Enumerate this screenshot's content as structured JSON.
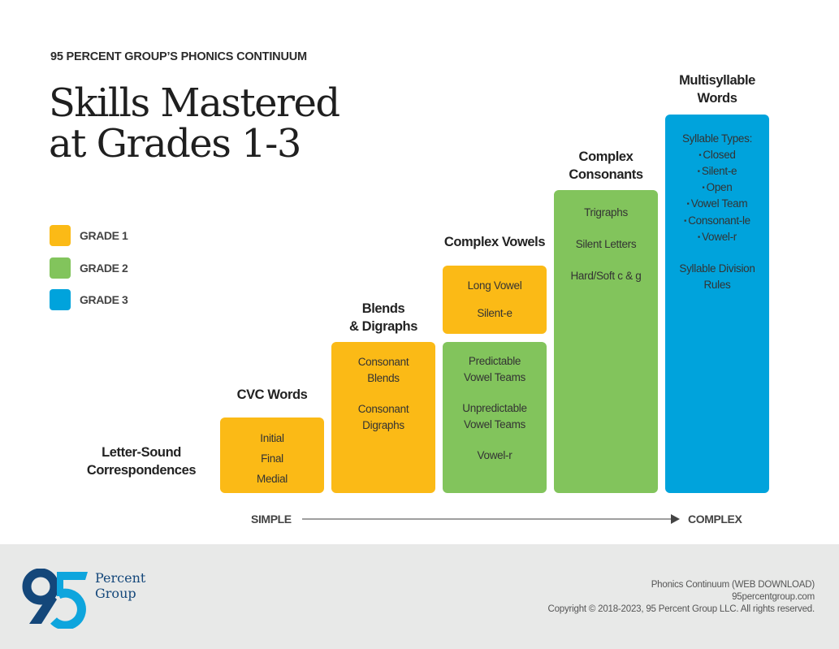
{
  "header": {
    "eyebrow": "95 PERCENT GROUP’S PHONICS CONTINUUM",
    "title_line1": "Skills Mastered",
    "title_line2": "at Grades 1-3"
  },
  "legend": [
    {
      "label": "GRADE 1",
      "color": "#fbba16"
    },
    {
      "label": "GRADE 2",
      "color": "#82c45c"
    },
    {
      "label": "GRADE 3",
      "color": "#00a3dc"
    }
  ],
  "stages": {
    "letter_sound": {
      "heading_line1": "Letter-Sound",
      "heading_line2": "Correspondences"
    },
    "cvc": {
      "heading": "CVC Words",
      "grade": 1,
      "items": [
        "Initial",
        "Final",
        "Medial"
      ]
    },
    "blends": {
      "heading_line1": "Blends",
      "heading_line2": "& Digraphs",
      "grade": 1,
      "items": [
        [
          "Consonant",
          "Blends"
        ],
        [
          "Consonant",
          "Digraphs"
        ]
      ]
    },
    "complex_vowels": {
      "heading": "Complex Vowels",
      "grade1_items": [
        "Long Vowel",
        "Silent-e"
      ],
      "grade2_items": [
        [
          "Predictable",
          "Vowel Teams"
        ],
        [
          "Unpredictable",
          "Vowel Teams"
        ],
        [
          "Vowel-r"
        ]
      ]
    },
    "complex_consonants": {
      "heading_line1": "Complex",
      "heading_line2": "Consonants",
      "grade": 2,
      "items": [
        "Trigraphs",
        "Silent Letters",
        "Hard/Soft c & g"
      ]
    },
    "multisyllable": {
      "heading_line1": "Multisyllable",
      "heading_line2": "Words",
      "grade": 3,
      "intro": "Syllable Types:",
      "bullets": [
        "Closed",
        "Silent-e",
        "Open",
        "Vowel Team",
        "Consonant-le",
        "Vowel-r"
      ],
      "outro_line1": "Syllable Division",
      "outro_line2": "Rules"
    }
  },
  "axis": {
    "start": "SIMPLE",
    "end": "COMPLEX"
  },
  "footer": {
    "logo_number": "95",
    "logo_word1": "Percent",
    "logo_word2": "Group",
    "line1": "Phonics Continuum (WEB DOWNLOAD)",
    "line2": "95percentgroup.com",
    "line3": "Copyright © 2018-2023, 95 Percent Group LLC. All rights reserved.",
    "brand_dark": "#14477a",
    "brand_light": "#0ea5dd"
  }
}
